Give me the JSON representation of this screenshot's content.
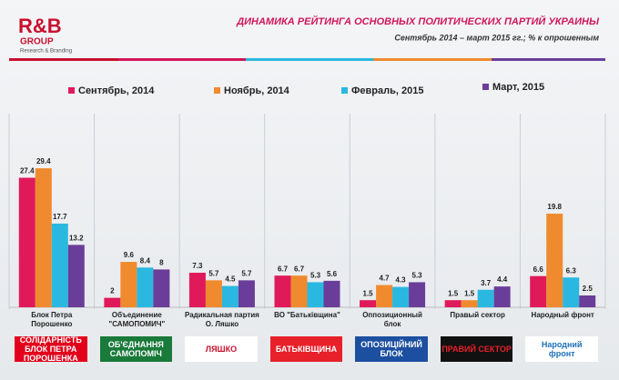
{
  "brand": {
    "name": "R&B",
    "group": "GROUP",
    "tagline": "Research & Branding"
  },
  "chart_data": {
    "type": "bar",
    "title": "ДИНАМИКА РЕЙТИНГА ОСНОВНЫХ ПОЛИТИЧЕСКИХ ПАРТИЙ УКРАИНЫ",
    "subtitle": "Сентябрь 2014 –  март 2015 гг.;  % к опрошенным",
    "categories": [
      "Блок Петра\nПорошенко",
      "Объединение\n\"САМОПОМИЧ\"",
      "Радикальная партия\nО. Ляшко",
      "ВО \"Батьківщина\"",
      "Оппозиционный\nблок",
      "Правый сектор",
      "Народный фронт"
    ],
    "series": [
      {
        "name": "Сентябрь, 2014",
        "color": "#e0195a",
        "values": [
          27.4,
          2,
          7.3,
          6.7,
          1.5,
          1.5,
          6.6
        ]
      },
      {
        "name": "Ноябрь, 2014",
        "color": "#f08a2e",
        "values": [
          29.4,
          9.6,
          5.7,
          6.7,
          4.7,
          1.5,
          19.8
        ]
      },
      {
        "name": "Февраль, 2015",
        "color": "#2ab8e0",
        "values": [
          17.7,
          8.4,
          4.5,
          5.3,
          4.3,
          3.7,
          6.3
        ]
      },
      {
        "name": "Март, 2015",
        "color": "#6a3d9a",
        "values": [
          13.2,
          8,
          5.7,
          5.6,
          5.3,
          4.4,
          2.5
        ]
      }
    ]
  },
  "logos": [
    "СОЛІДАРНІСТЬ\nБЛОК ПЕТРА ПОРОШЕНКА",
    "ОБ'ЄДНАННЯ\nСАМОПОМІЧ",
    "ЛЯШКО",
    "БАТЬКІВЩИНА",
    "ОПОЗИЦІЙНИЙ\nБЛОК",
    "ПРАВИЙ СЕКТОР",
    "Народний\nфронт"
  ]
}
